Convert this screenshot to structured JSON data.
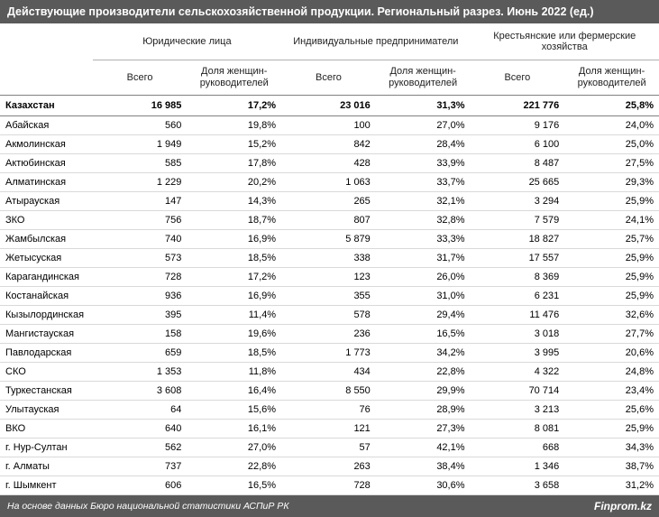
{
  "title": "Действующие производители сельскохозяйственной продукции. Региональный разрез. Июнь 2022 (ед.)",
  "columns": {
    "region_header": "",
    "groups": [
      {
        "label": "Юридические лица",
        "sub": [
          "Всего",
          "Доля женщин-руководителей"
        ]
      },
      {
        "label": "Индивидуальные предприниматели",
        "sub": [
          "Всего",
          "Доля женщин-руководителей"
        ]
      },
      {
        "label": "Крестьянские или фермерские хозяйства",
        "sub": [
          "Всего",
          "Доля женщин-руководителей"
        ]
      }
    ]
  },
  "total_row": {
    "region": "Казахстан",
    "values": [
      "16 985",
      "17,2%",
      "23 016",
      "31,3%",
      "221 776",
      "25,8%"
    ]
  },
  "rows": [
    {
      "region": "Абайская",
      "values": [
        "560",
        "19,8%",
        "100",
        "27,0%",
        "9 176",
        "24,0%"
      ]
    },
    {
      "region": "Акмолинская",
      "values": [
        "1 949",
        "15,2%",
        "842",
        "28,4%",
        "6 100",
        "25,0%"
      ]
    },
    {
      "region": "Актюбинская",
      "values": [
        "585",
        "17,8%",
        "428",
        "33,9%",
        "8 487",
        "27,5%"
      ]
    },
    {
      "region": "Алматинская",
      "values": [
        "1 229",
        "20,2%",
        "1 063",
        "33,7%",
        "25 665",
        "29,3%"
      ]
    },
    {
      "region": "Атырауская",
      "values": [
        "147",
        "14,3%",
        "265",
        "32,1%",
        "3 294",
        "25,9%"
      ]
    },
    {
      "region": "ЗКО",
      "values": [
        "756",
        "18,7%",
        "807",
        "32,8%",
        "7 579",
        "24,1%"
      ]
    },
    {
      "region": "Жамбылская",
      "values": [
        "740",
        "16,9%",
        "5 879",
        "33,3%",
        "18 827",
        "25,7%"
      ]
    },
    {
      "region": "Жетысуская",
      "values": [
        "573",
        "18,5%",
        "338",
        "31,7%",
        "17 557",
        "25,9%"
      ]
    },
    {
      "region": "Карагандинская",
      "values": [
        "728",
        "17,2%",
        "123",
        "26,0%",
        "8 369",
        "25,9%"
      ]
    },
    {
      "region": "Костанайская",
      "values": [
        "936",
        "16,9%",
        "355",
        "31,0%",
        "6 231",
        "25,9%"
      ]
    },
    {
      "region": "Кызылординская",
      "values": [
        "395",
        "11,4%",
        "578",
        "29,4%",
        "11 476",
        "32,6%"
      ]
    },
    {
      "region": "Мангистауская",
      "values": [
        "158",
        "19,6%",
        "236",
        "16,5%",
        "3 018",
        "27,7%"
      ]
    },
    {
      "region": "Павлодарская",
      "values": [
        "659",
        "18,5%",
        "1 773",
        "34,2%",
        "3 995",
        "20,6%"
      ]
    },
    {
      "region": "СКО",
      "values": [
        "1 353",
        "11,8%",
        "434",
        "22,8%",
        "4 322",
        "24,8%"
      ]
    },
    {
      "region": "Туркестанская",
      "values": [
        "3 608",
        "16,4%",
        "8 550",
        "29,9%",
        "70 714",
        "23,4%"
      ]
    },
    {
      "region": "Улытауская",
      "values": [
        "64",
        "15,6%",
        "76",
        "28,9%",
        "3 213",
        "25,6%"
      ]
    },
    {
      "region": "ВКО",
      "values": [
        "640",
        "16,1%",
        "121",
        "27,3%",
        "8 081",
        "25,9%"
      ]
    },
    {
      "region": "г. Нур-Султан",
      "values": [
        "562",
        "27,0%",
        "57",
        "42,1%",
        "668",
        "34,3%"
      ]
    },
    {
      "region": "г. Алматы",
      "values": [
        "737",
        "22,8%",
        "263",
        "38,4%",
        "1 346",
        "38,7%"
      ]
    },
    {
      "region": "г. Шымкент",
      "values": [
        "606",
        "16,5%",
        "728",
        "30,6%",
        "3 658",
        "31,2%"
      ]
    }
  ],
  "footer": {
    "source": "На основе данных Бюро национальной статистики АСПиР РК",
    "brand": "Finprom.kz"
  },
  "style": {
    "title_bg": "#5a5a5a",
    "title_color": "#ffffff",
    "row_border": "#d9d9d9",
    "header_border": "#808080",
    "font_family": "Arial",
    "title_fontsize": 12.5,
    "body_fontsize": 11,
    "footer_fontsize": 10.5
  }
}
